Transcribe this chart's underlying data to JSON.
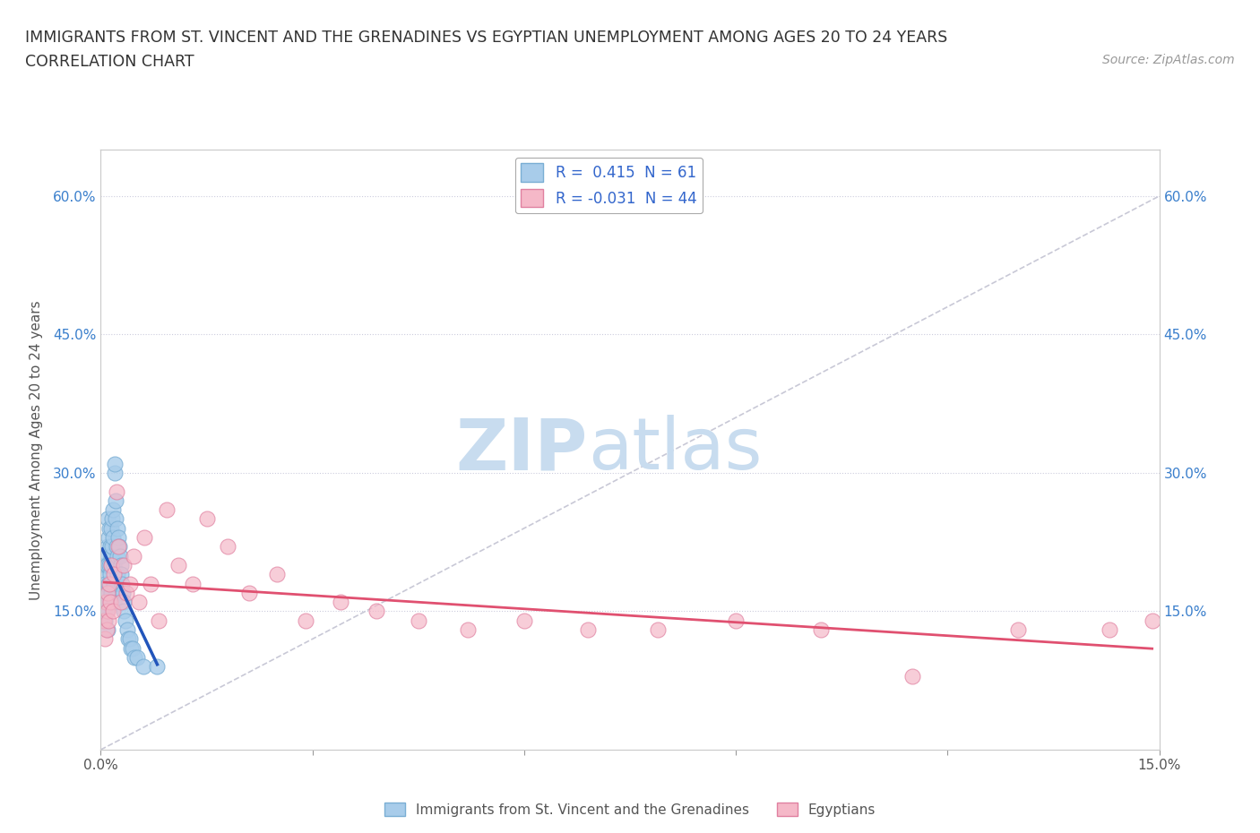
{
  "title_line1": "IMMIGRANTS FROM ST. VINCENT AND THE GRENADINES VS EGYPTIAN UNEMPLOYMENT AMONG AGES 20 TO 24 YEARS",
  "title_line2": "CORRELATION CHART",
  "source_text": "Source: ZipAtlas.com",
  "ylabel": "Unemployment Among Ages 20 to 24 years",
  "xlim": [
    0.0,
    0.15
  ],
  "ylim": [
    0.0,
    0.65
  ],
  "blue_color": "#A8CCEA",
  "blue_edge_color": "#7AAED4",
  "pink_color": "#F5B8C8",
  "pink_edge_color": "#E080A0",
  "blue_trend_color": "#2255BB",
  "pink_trend_color": "#E05070",
  "diag_line_color": "#BBBBCC",
  "R_blue": 0.415,
  "N_blue": 61,
  "R_pink": -0.031,
  "N_pink": 44,
  "legend_label_blue": "Immigrants from St. Vincent and the Grenadines",
  "legend_label_pink": "Egyptians",
  "blue_scatter_x": [
    0.0002,
    0.0003,
    0.0004,
    0.0004,
    0.0005,
    0.0005,
    0.0006,
    0.0006,
    0.0007,
    0.0007,
    0.0008,
    0.0008,
    0.0009,
    0.0009,
    0.001,
    0.001,
    0.001,
    0.0011,
    0.0011,
    0.0012,
    0.0012,
    0.0013,
    0.0013,
    0.0014,
    0.0014,
    0.0015,
    0.0015,
    0.0016,
    0.0016,
    0.0017,
    0.0017,
    0.0018,
    0.0018,
    0.0019,
    0.002,
    0.002,
    0.0021,
    0.0021,
    0.0022,
    0.0023,
    0.0023,
    0.0024,
    0.0025,
    0.0026,
    0.0027,
    0.0028,
    0.0029,
    0.003,
    0.0031,
    0.0032,
    0.0033,
    0.0035,
    0.0037,
    0.0039,
    0.0041,
    0.0043,
    0.0045,
    0.0048,
    0.0052,
    0.006,
    0.008
  ],
  "blue_scatter_y": [
    0.14,
    0.16,
    0.17,
    0.2,
    0.15,
    0.19,
    0.14,
    0.18,
    0.16,
    0.21,
    0.15,
    0.2,
    0.17,
    0.13,
    0.2,
    0.22,
    0.25,
    0.18,
    0.23,
    0.2,
    0.24,
    0.19,
    0.22,
    0.21,
    0.17,
    0.24,
    0.2,
    0.25,
    0.22,
    0.23,
    0.26,
    0.2,
    0.18,
    0.16,
    0.3,
    0.31,
    0.25,
    0.27,
    0.22,
    0.24,
    0.21,
    0.19,
    0.23,
    0.22,
    0.21,
    0.2,
    0.19,
    0.18,
    0.17,
    0.16,
    0.15,
    0.14,
    0.13,
    0.12,
    0.12,
    0.11,
    0.11,
    0.1,
    0.1,
    0.09,
    0.09
  ],
  "pink_scatter_x": [
    0.0005,
    0.0006,
    0.0007,
    0.0008,
    0.0009,
    0.001,
    0.0011,
    0.0012,
    0.0013,
    0.0015,
    0.0017,
    0.0019,
    0.0022,
    0.0025,
    0.0028,
    0.0032,
    0.0036,
    0.0041,
    0.0047,
    0.0054,
    0.0062,
    0.0071,
    0.0082,
    0.0094,
    0.011,
    0.013,
    0.015,
    0.018,
    0.021,
    0.025,
    0.029,
    0.034,
    0.039,
    0.045,
    0.052,
    0.06,
    0.069,
    0.079,
    0.09,
    0.102,
    0.115,
    0.13,
    0.143,
    0.149
  ],
  "pink_scatter_y": [
    0.14,
    0.12,
    0.16,
    0.13,
    0.15,
    0.17,
    0.14,
    0.18,
    0.16,
    0.2,
    0.15,
    0.19,
    0.28,
    0.22,
    0.16,
    0.2,
    0.17,
    0.18,
    0.21,
    0.16,
    0.23,
    0.18,
    0.14,
    0.26,
    0.2,
    0.18,
    0.25,
    0.22,
    0.17,
    0.19,
    0.14,
    0.16,
    0.15,
    0.14,
    0.13,
    0.14,
    0.13,
    0.13,
    0.14,
    0.13,
    0.08,
    0.13,
    0.13,
    0.14
  ]
}
